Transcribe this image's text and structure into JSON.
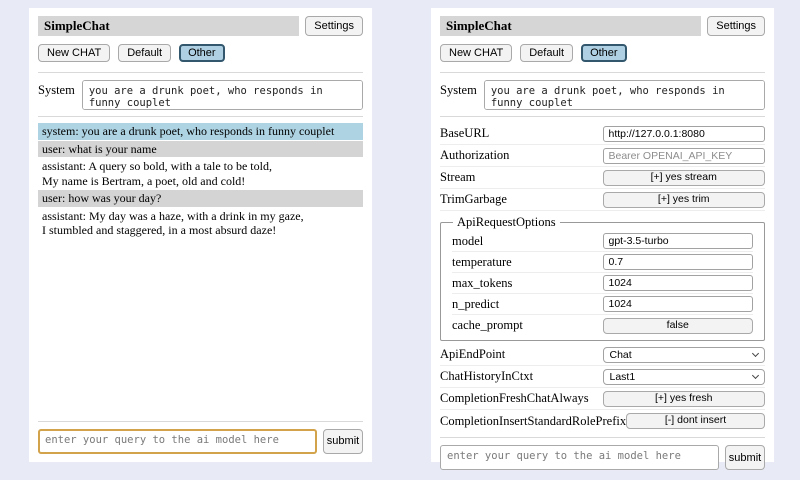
{
  "app": {
    "title": "SimpleChat",
    "settings_button": "Settings"
  },
  "toolbar": {
    "new_chat": "New CHAT",
    "session_default": "Default",
    "session_other": "Other"
  },
  "system_prompt": {
    "label": "System",
    "value": "you are a drunk poet, who responds in funny couplet"
  },
  "chat": {
    "messages": [
      {
        "role": "system",
        "text": "system: you are a drunk poet, who responds in funny couplet"
      },
      {
        "role": "user",
        "text": "user: what is your name"
      },
      {
        "role": "assistant",
        "text": "assistant: A query so bold, with a tale to be told,\nMy name is Bertram, a poet, old and cold!"
      },
      {
        "role": "user",
        "text": "user: how was your day?"
      },
      {
        "role": "assistant",
        "text": "assistant: My day was a haze, with a drink in my gaze,\nI stumbled and staggered, in a most absurd daze!"
      }
    ]
  },
  "query": {
    "placeholder": "enter your query to the ai model here",
    "submit_label": "submit"
  },
  "settings": {
    "base_url": {
      "label": "BaseURL",
      "value": "http://127.0.0.1:8080"
    },
    "authorization": {
      "label": "Authorization",
      "placeholder": "Bearer OPENAI_API_KEY"
    },
    "stream": {
      "label": "Stream",
      "button": "[+] yes stream"
    },
    "trim_garbage": {
      "label": "TrimGarbage",
      "button": "[+] yes trim"
    },
    "api_request_options": {
      "legend": "ApiRequestOptions",
      "model": {
        "label": "model",
        "value": "gpt-3.5-turbo"
      },
      "temperature": {
        "label": "temperature",
        "value": "0.7"
      },
      "max_tokens": {
        "label": "max_tokens",
        "value": "1024"
      },
      "n_predict": {
        "label": "n_predict",
        "value": "1024"
      },
      "cache_prompt": {
        "label": "cache_prompt",
        "button": "false"
      }
    },
    "api_endpoint": {
      "label": "ApiEndPoint",
      "value": "Chat"
    },
    "chat_history_in_ctxt": {
      "label": "ChatHistoryInCtxt",
      "value": "Last1"
    },
    "completion_fresh_chat_always": {
      "label": "CompletionFreshChatAlways",
      "button": "[+] yes fresh"
    },
    "completion_insert_standard_role_prefix": {
      "label": "CompletionInsertStandardRolePrefix",
      "button": "[-] dont insert"
    }
  },
  "colors": {
    "page_background": "#e8ebf5",
    "title_bar_background": "#d6d6d6",
    "active_session_background": "#aed0e2",
    "system_message_background": "#aed4e4",
    "user_message_background": "#d4d4d4",
    "focused_input_border": "#d2a34b"
  }
}
